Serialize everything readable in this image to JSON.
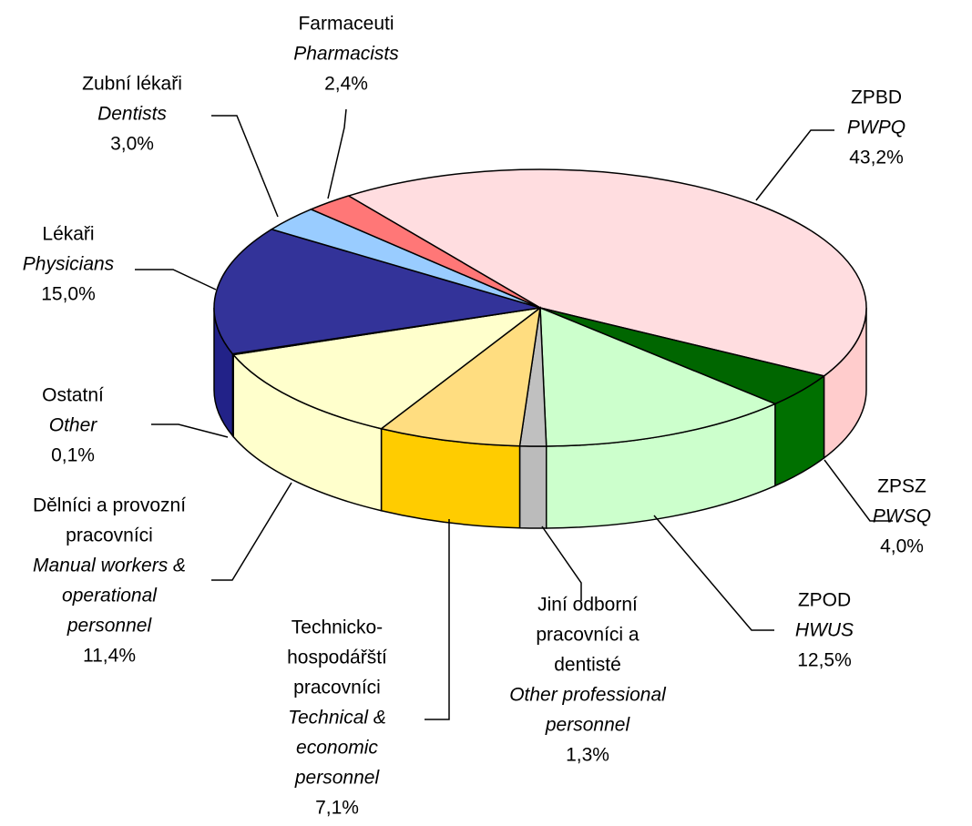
{
  "chart_data": {
    "type": "pie",
    "categories": [
      [
        "ZPBD"
      ],
      [
        "ZPSZ"
      ],
      [
        "ZPOD"
      ],
      [
        "Jiní odborní",
        "pracovníci a",
        "dentisté"
      ],
      [
        "Technicko-",
        "hospodářští",
        "pracovníci"
      ],
      [
        "Dělníci a provozní",
        "pracovníci"
      ],
      [
        "Ostatní"
      ],
      [
        "Lékaři"
      ],
      [
        "Zubní lékaři"
      ],
      [
        "Farmaceuti"
      ]
    ],
    "categories_en": [
      [
        "PWPQ"
      ],
      [
        "PWSQ"
      ],
      [
        "HWUS"
      ],
      [
        "Other professional",
        "personnel"
      ],
      [
        "Technical &",
        "economic",
        "personnel"
      ],
      [
        "Manual workers &",
        "operational",
        "personnel"
      ],
      [
        "Other"
      ],
      [
        "Physicians"
      ],
      [
        "Dentists"
      ],
      [
        "Pharmacists"
      ]
    ],
    "values": [
      43.2,
      4.0,
      12.5,
      1.3,
      7.1,
      11.4,
      0.1,
      15.0,
      3.0,
      2.4
    ],
    "value_labels": [
      "43,2%",
      "4,0%",
      "12,5%",
      "1,3%",
      "7,1%",
      "11,4%",
      "0,1%",
      "15,0%",
      "3,0%",
      "2,4%"
    ],
    "colors": [
      "#ffdde0",
      "#006600",
      "#ccffcc",
      "#c0c0c0",
      "#ffdd80",
      "#ffffcc",
      "#000080",
      "#333399",
      "#99ccff",
      "#ff7777"
    ],
    "side_colors": [
      "#ffcccc",
      "#007000",
      "#ccffcc",
      "#bbbbbb",
      "#ffcc00",
      "#ffffcc",
      "#000080",
      "#222288",
      "#88bbee",
      "#ee6666"
    ]
  }
}
